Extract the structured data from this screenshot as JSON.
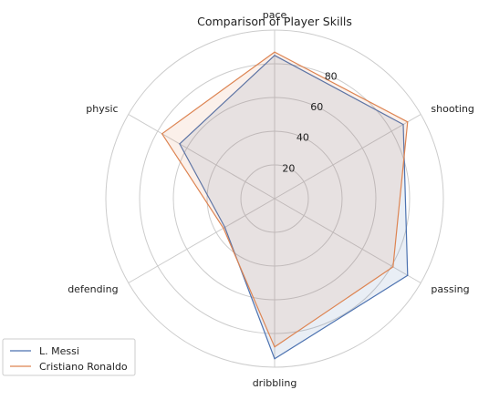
{
  "chart_data": {
    "type": "radar",
    "title": "Comparison of Player Skills",
    "axes": [
      "pace",
      "shooting",
      "passing",
      "dribbling",
      "defending",
      "physic"
    ],
    "r_ticks": [
      20,
      40,
      60,
      80
    ],
    "r_range": [
      0,
      100
    ],
    "grid": true,
    "legend_position": "bottom-left",
    "series": [
      {
        "name": "L. Messi",
        "color": "#4c72b0",
        "fill_opacity": 0.12,
        "values": [
          85,
          88,
          91,
          95,
          34,
          65
        ]
      },
      {
        "name": "Cristiano Ronaldo",
        "color": "#dd8452",
        "fill_opacity": 0.12,
        "values": [
          87,
          91,
          81,
          88,
          35,
          77
        ]
      }
    ]
  }
}
